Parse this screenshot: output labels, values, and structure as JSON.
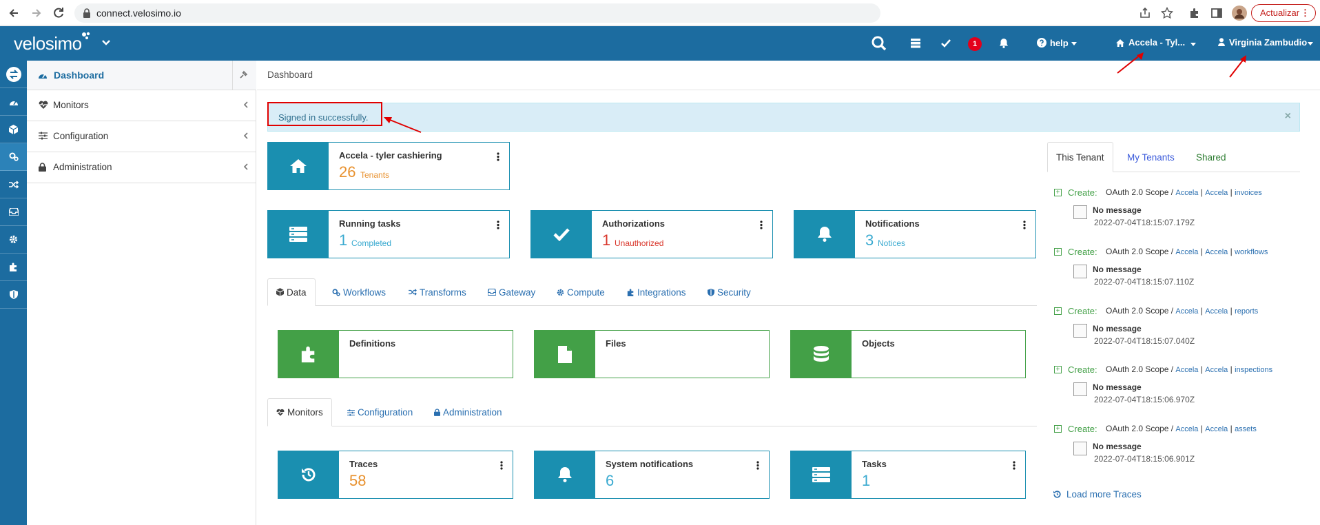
{
  "browser": {
    "url": "connect.velosimo.io",
    "update_label": "Actualizar"
  },
  "header": {
    "logo": "velosimo",
    "notification_count": "1",
    "help_label": "help",
    "tenant_label": "Accela - Tyl...",
    "user_label": "Virginia Zambudio",
    "color": "#1c6ca0"
  },
  "sidebar": {
    "active_label": "Dashboard",
    "items": [
      {
        "label": "Monitors",
        "icon": "heartbeat-icon"
      },
      {
        "label": "Configuration",
        "icon": "sliders-icon"
      },
      {
        "label": "Administration",
        "icon": "lock-icon"
      }
    ]
  },
  "breadcrumb": "Dashboard",
  "alert": {
    "message": "Signed in successfully."
  },
  "tenant_card": {
    "title": "Accela - tyler cashiering",
    "value": "26",
    "sub": "Tenants"
  },
  "summary_cards": [
    {
      "title": "Running tasks",
      "value": "1",
      "sub": "Completed"
    },
    {
      "title": "Authorizations",
      "value": "1",
      "sub": "Unauthorized"
    },
    {
      "title": "Notifications",
      "value": "3",
      "sub": "Notices"
    }
  ],
  "data_tabs": [
    "Data",
    "Workflows",
    "Transforms",
    "Gateway",
    "Compute",
    "Integrations",
    "Security"
  ],
  "data_cards": [
    {
      "title": "Definitions"
    },
    {
      "title": "Files"
    },
    {
      "title": "Objects"
    }
  ],
  "monitor_tabs": [
    "Monitors",
    "Configuration",
    "Administration"
  ],
  "monitor_cards": [
    {
      "title": "Traces",
      "value": "58"
    },
    {
      "title": "System notifications",
      "value": "6"
    },
    {
      "title": "Tasks",
      "value": "1"
    }
  ],
  "right_panel": {
    "tabs": [
      "This Tenant",
      "My Tenants",
      "Shared"
    ],
    "feed": [
      {
        "action": "Create:",
        "scope": "OAuth 2.0 Scope /",
        "links": [
          "Accela",
          "Accela",
          "invoices"
        ],
        "message": "No message",
        "timestamp": "2022-07-04T18:15:07.179Z"
      },
      {
        "action": "Create:",
        "scope": "OAuth 2.0 Scope /",
        "links": [
          "Accela",
          "Accela",
          "workflows"
        ],
        "message": "No message",
        "timestamp": "2022-07-04T18:15:07.110Z"
      },
      {
        "action": "Create:",
        "scope": "OAuth 2.0 Scope /",
        "links": [
          "Accela",
          "Accela",
          "reports"
        ],
        "message": "No message",
        "timestamp": "2022-07-04T18:15:07.040Z"
      },
      {
        "action": "Create:",
        "scope": "OAuth 2.0 Scope /",
        "links": [
          "Accela",
          "Accela",
          "inspections"
        ],
        "message": "No message",
        "timestamp": "2022-07-04T18:15:06.970Z"
      },
      {
        "action": "Create:",
        "scope": "OAuth 2.0 Scope /",
        "links": [
          "Accela",
          "Accela",
          "assets"
        ],
        "message": "No message",
        "timestamp": "2022-07-04T18:15:06.901Z"
      }
    ],
    "load_more": "Load more Traces"
  }
}
